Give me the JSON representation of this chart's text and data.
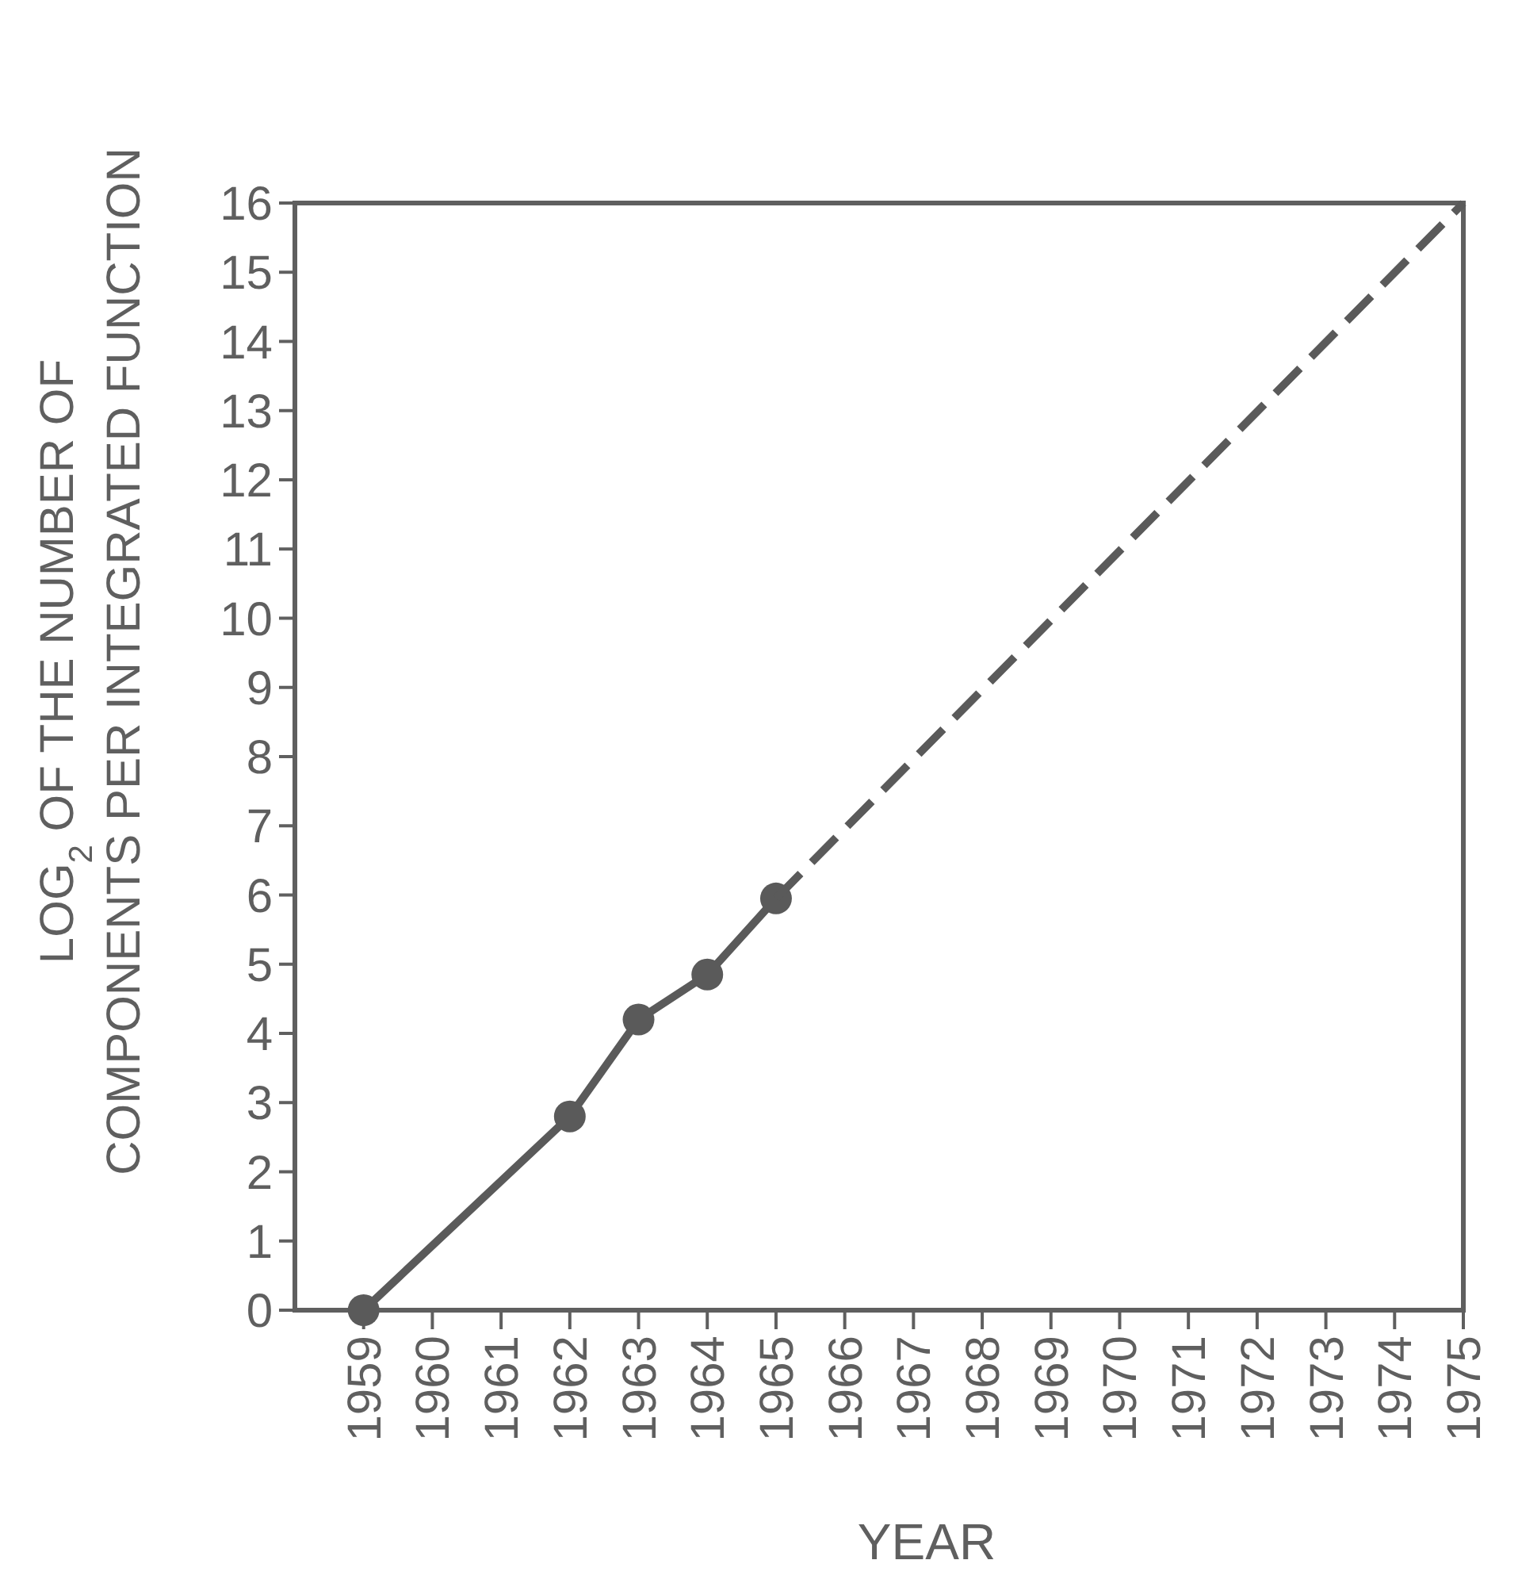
{
  "chart_data": {
    "type": "line",
    "xlabel": "YEAR",
    "ylabel": "LOG$_{2}$ OF THE NUMBER OF\nCOMPONENTS PER INTEGRATED FUNCTION",
    "xlim": [
      1958,
      1975
    ],
    "xticks": [
      1959,
      1960,
      1961,
      1962,
      1963,
      1964,
      1965,
      1966,
      1967,
      1968,
      1969,
      1970,
      1971,
      1972,
      1973,
      1974,
      1975
    ],
    "ylim": [
      0,
      16
    ],
    "yticks": [
      0,
      1,
      2,
      3,
      4,
      5,
      6,
      7,
      8,
      9,
      10,
      11,
      12,
      13,
      14,
      15,
      16
    ],
    "grid": false,
    "series": [
      {
        "x": [
          1959,
          1962,
          1963,
          1964,
          1965
        ],
        "values": [
          0,
          2.8,
          4.2,
          4.85,
          5.95
        ],
        "color": "#5a5a5a",
        "marker": "circle",
        "line_style": "solid"
      },
      {
        "x": [
          1965,
          1975
        ],
        "values": [
          5.95,
          16
        ],
        "color": "#5a5a5a",
        "marker": "none",
        "line_style": "dashed"
      }
    ]
  }
}
